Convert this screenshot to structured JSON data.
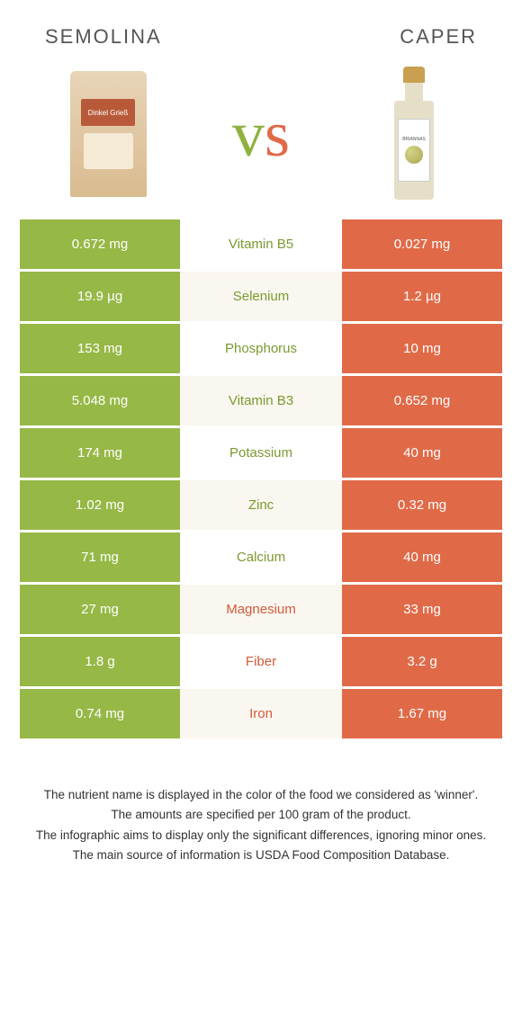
{
  "header": {
    "left": "Semolina",
    "right": "Caper"
  },
  "vs": {
    "v": "v",
    "s": "s"
  },
  "product_images": {
    "left_label": "Dinkel Grieß",
    "right_label": "BRIANNAS"
  },
  "colors": {
    "green": "#96b846",
    "orange": "#e06a48",
    "green_text": "#7a9a2e",
    "orange_text": "#d15a3a",
    "beige": "#faf7f0"
  },
  "rows": [
    {
      "left": "0.672 mg",
      "mid": "Vitamin B5",
      "right": "0.027 mg",
      "winner": "left",
      "alt": false
    },
    {
      "left": "19.9 µg",
      "mid": "Selenium",
      "right": "1.2 µg",
      "winner": "left",
      "alt": true
    },
    {
      "left": "153 mg",
      "mid": "Phosphorus",
      "right": "10 mg",
      "winner": "left",
      "alt": false
    },
    {
      "left": "5.048 mg",
      "mid": "Vitamin B3",
      "right": "0.652 mg",
      "winner": "left",
      "alt": true
    },
    {
      "left": "174 mg",
      "mid": "Potassium",
      "right": "40 mg",
      "winner": "left",
      "alt": false
    },
    {
      "left": "1.02 mg",
      "mid": "Zinc",
      "right": "0.32 mg",
      "winner": "left",
      "alt": true
    },
    {
      "left": "71 mg",
      "mid": "Calcium",
      "right": "40 mg",
      "winner": "left",
      "alt": false
    },
    {
      "left": "27 mg",
      "mid": "Magnesium",
      "right": "33 mg",
      "winner": "right",
      "alt": true
    },
    {
      "left": "1.8 g",
      "mid": "Fiber",
      "right": "3.2 g",
      "winner": "right",
      "alt": false
    },
    {
      "left": "0.74 mg",
      "mid": "Iron",
      "right": "1.67 mg",
      "winner": "right",
      "alt": true
    }
  ],
  "footer": {
    "l1": "The nutrient name is displayed in the color of the food we considered as 'winner'.",
    "l2": "The amounts are specified per 100 gram of the product.",
    "l3": "The infographic aims to display only the significant differences, ignoring minor ones.",
    "l4": "The main source of information is USDA Food Composition Database."
  }
}
